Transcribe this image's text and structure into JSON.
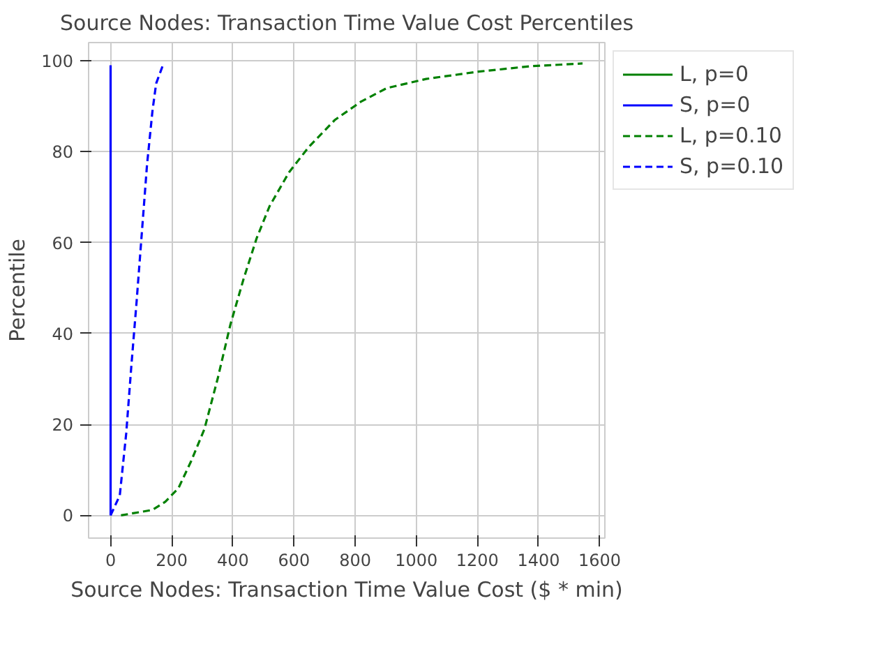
{
  "chart_data": {
    "type": "line",
    "title": "Source Nodes: Transaction Time Value Cost Percentiles",
    "xlabel": "Source Nodes: Transaction Time Value Cost ($ * min)",
    "ylabel": "Percentile",
    "xlim": [
      -72,
      1617
    ],
    "ylim": [
      -5,
      104
    ],
    "xticks": [
      0,
      200,
      400,
      600,
      800,
      1000,
      1200,
      1400,
      1600
    ],
    "yticks": [
      0,
      20,
      40,
      60,
      80,
      100
    ],
    "grid": true,
    "legend": "right",
    "marker": "none",
    "series": [
      {
        "name": "L, p=0",
        "color": "#008000",
        "line_style": "solid"
      },
      {
        "name": "S, p=0",
        "color": "#0000ff",
        "line_style": "solid",
        "x": [
          0,
          0
        ],
        "values": [
          0,
          99
        ]
      },
      {
        "name": "L, p=0.10",
        "color": "#008000",
        "line_style": "dashed",
        "x": [
          34,
          137,
          179,
          222,
          264,
          307,
          350,
          392,
          435,
          478,
          520,
          584,
          648,
          734,
          819,
          904,
          1032,
          1203,
          1374,
          1544
        ],
        "values": [
          0,
          1.2,
          3,
          6,
          12,
          19,
          30,
          42,
          52,
          61,
          68,
          75.5,
          81,
          87,
          91,
          94,
          96,
          97.6,
          98.8,
          99.4
        ]
      },
      {
        "name": "S, p=0.10",
        "color": "#0000ff",
        "line_style": "dashed",
        "x": [
          0,
          30,
          51,
          68,
          85,
          102,
          119,
          137,
          149,
          171
        ],
        "values": [
          0,
          4.4,
          18,
          33,
          47,
          62,
          77,
          89,
          95,
          99
        ]
      }
    ]
  }
}
